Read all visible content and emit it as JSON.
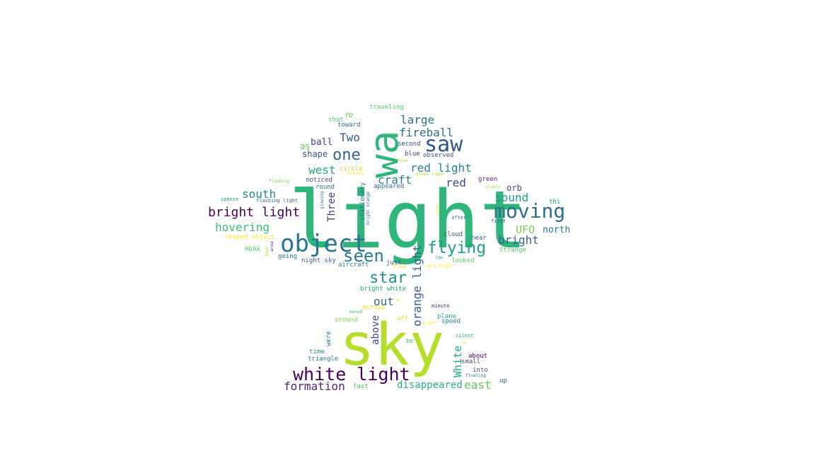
{
  "word_cloud": {
    "words": [
      {
        "text": "light",
        "color": "#2db57a"
      },
      {
        "text": "sky",
        "color": "#b5de2b"
      },
      {
        "text": "wa",
        "color": "#2db57a"
      },
      {
        "text": "object",
        "color": "#2a768e"
      },
      {
        "text": "saw",
        "color": "#31548c"
      },
      {
        "text": "moving",
        "color": "#2f6c8e"
      },
      {
        "text": "white light",
        "color": "#440154"
      },
      {
        "text": "flying",
        "color": "#1f9e89"
      },
      {
        "text": "seen",
        "color": "#2a788e"
      },
      {
        "text": "star",
        "color": "#21918c"
      },
      {
        "text": "one",
        "color": "#33638d"
      },
      {
        "text": "bright light",
        "color": "#440154"
      },
      {
        "text": "fireball",
        "color": "#2c718e"
      },
      {
        "text": "large",
        "color": "#2c728e"
      },
      {
        "text": "red light",
        "color": "#26828e"
      },
      {
        "text": "hovering",
        "color": "#3bbb75"
      },
      {
        "text": "formation",
        "color": "#482878"
      },
      {
        "text": "Two",
        "color": "#365c8d"
      },
      {
        "text": "craft",
        "color": "#26828e"
      },
      {
        "text": "south",
        "color": "#238a8d"
      },
      {
        "text": "bright",
        "color": "#31678e"
      },
      {
        "text": "sound",
        "color": "#1f9e89"
      },
      {
        "text": "west",
        "color": "#22a884"
      },
      {
        "text": "red",
        "color": "#3e4a89"
      },
      {
        "text": "out",
        "color": "#31688e"
      },
      {
        "text": "UFO",
        "color": "#7ad151"
      },
      {
        "text": "orange light",
        "color": "#355f8d"
      },
      {
        "text": "east",
        "color": "#5ec962"
      },
      {
        "text": "disappeared",
        "color": "#29af7f"
      },
      {
        "text": "White",
        "color": "#20a486"
      },
      {
        "text": "above",
        "color": "#3e4a89"
      },
      {
        "text": "Three",
        "color": "#443a83"
      },
      {
        "text": "north",
        "color": "#2a788e"
      },
      {
        "text": "orb",
        "color": "#3e4989"
      },
      {
        "text": "ball",
        "color": "#414487"
      },
      {
        "text": "shape",
        "color": "#3b528b"
      },
      {
        "text": "as",
        "color": "#5ec962"
      },
      {
        "text": "stationary",
        "color": "#2a768e"
      },
      {
        "text": "traveling",
        "color": "#52c569"
      },
      {
        "text": "that",
        "color": "#52c569"
      },
      {
        "text": "PD",
        "color": "#5ec962"
      },
      {
        "text": "toward",
        "color": "#31688e"
      },
      {
        "text": "second",
        "color": "#3b528b"
      },
      {
        "text": "blue",
        "color": "#46327e"
      },
      {
        "text": "observed",
        "color": "#3b528b"
      },
      {
        "text": "move",
        "color": "#a5db36"
      },
      {
        "text": "green light",
        "color": "#b5de2b"
      },
      {
        "text": "circle",
        "color": "#b5de2b"
      },
      {
        "text": "through",
        "color": "#fde725"
      },
      {
        "text": "noticed",
        "color": "#3e4989"
      },
      {
        "text": "round",
        "color": "#2d708e"
      },
      {
        "text": "appeared",
        "color": "#2c718e"
      },
      {
        "text": "green",
        "color": "#482878"
      },
      {
        "text": "slowly",
        "color": "#a5db36"
      },
      {
        "text": "glowing",
        "color": "#2a788e"
      },
      {
        "text": "bright orange",
        "color": "#2c718e"
      },
      {
        "text": "flashing",
        "color": "#7ad151"
      },
      {
        "text": "sphere",
        "color": "#20a486"
      },
      {
        "text": "flashing light",
        "color": "#31688e"
      },
      {
        "text": "thi",
        "color": "#22a884"
      },
      {
        "text": "shaped object",
        "color": "#fde725"
      },
      {
        "text": "color",
        "color": "#dde318"
      },
      {
        "text": "after",
        "color": "#2c728e"
      },
      {
        "text": "first",
        "color": "#3e4989"
      },
      {
        "text": "area",
        "color": "#46327e"
      },
      {
        "text": "HOAX",
        "color": "#52c569"
      },
      {
        "text": "cloud",
        "color": "#33638d"
      },
      {
        "text": "near",
        "color": "#3b528b"
      },
      {
        "text": "going",
        "color": "#2c728e"
      },
      {
        "text": "night sky",
        "color": "#355f8d"
      },
      {
        "text": "aircraft",
        "color": "#2a788e"
      },
      {
        "text": "just",
        "color": "#3e4a89"
      },
      {
        "text": "looked",
        "color": "#5ec962"
      },
      {
        "text": "low",
        "color": "#20a486"
      },
      {
        "text": "black",
        "color": "#dde318"
      },
      {
        "text": "very bright",
        "color": "#fde725"
      },
      {
        "text": "Strange",
        "color": "#52c569"
      },
      {
        "text": "down",
        "color": "#b5de2b"
      },
      {
        "text": "bright white",
        "color": "#1f9e89"
      },
      {
        "text": "across",
        "color": "#dde318"
      },
      {
        "text": "w",
        "color": "#c2df23"
      },
      {
        "text": "moved",
        "color": "#3bbb75"
      },
      {
        "text": "minute",
        "color": "#482878"
      },
      {
        "text": "around",
        "color": "#86d549"
      },
      {
        "text": "off",
        "color": "#dde318"
      },
      {
        "text": "plane",
        "color": "#22a884"
      },
      {
        "text": "night",
        "color": "#fde725"
      },
      {
        "text": "speed",
        "color": "#26828e"
      },
      {
        "text": "silent",
        "color": "#22a884"
      },
      {
        "text": "were",
        "color": "#2c718e"
      },
      {
        "text": "be",
        "color": "#52c569"
      },
      {
        "text": "sm",
        "color": "#fde725"
      },
      {
        "text": "time",
        "color": "#21918c"
      },
      {
        "text": "triangle",
        "color": "#287c8e"
      },
      {
        "text": "about",
        "color": "#440154"
      },
      {
        "text": "small",
        "color": "#3e4989"
      },
      {
        "text": "into",
        "color": "#3b528b"
      },
      {
        "text": "floating",
        "color": "#2a768e"
      },
      {
        "text": "fast",
        "color": "#52c569"
      },
      {
        "text": "up",
        "color": "#355f8d"
      }
    ]
  }
}
